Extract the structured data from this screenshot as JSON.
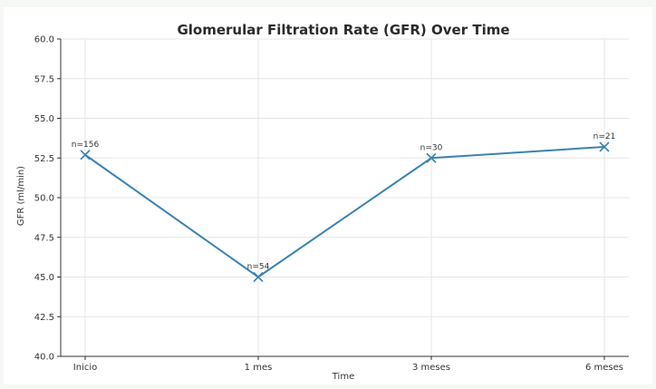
{
  "chart_data": {
    "type": "line",
    "title": "Glomerular Filtration Rate (GFR) Over Time",
    "xlabel": "Time",
    "ylabel": "GFR (ml/min)",
    "categories": [
      "Inicio",
      "1 mes",
      "3 meses",
      "6 meses"
    ],
    "series": [
      {
        "values": [
          52.7,
          45.0,
          52.5,
          53.2
        ],
        "labels": [
          "n=156",
          "n=54",
          "n=30",
          "n=21"
        ],
        "color": "#3a82b1",
        "marker": "x"
      }
    ],
    "ylim": [
      40.0,
      60.0
    ],
    "yticks": [
      "40.0",
      "42.5",
      "45.0",
      "47.5",
      "50.0",
      "52.5",
      "55.0",
      "57.5",
      "60.0"
    ],
    "grid": true
  }
}
